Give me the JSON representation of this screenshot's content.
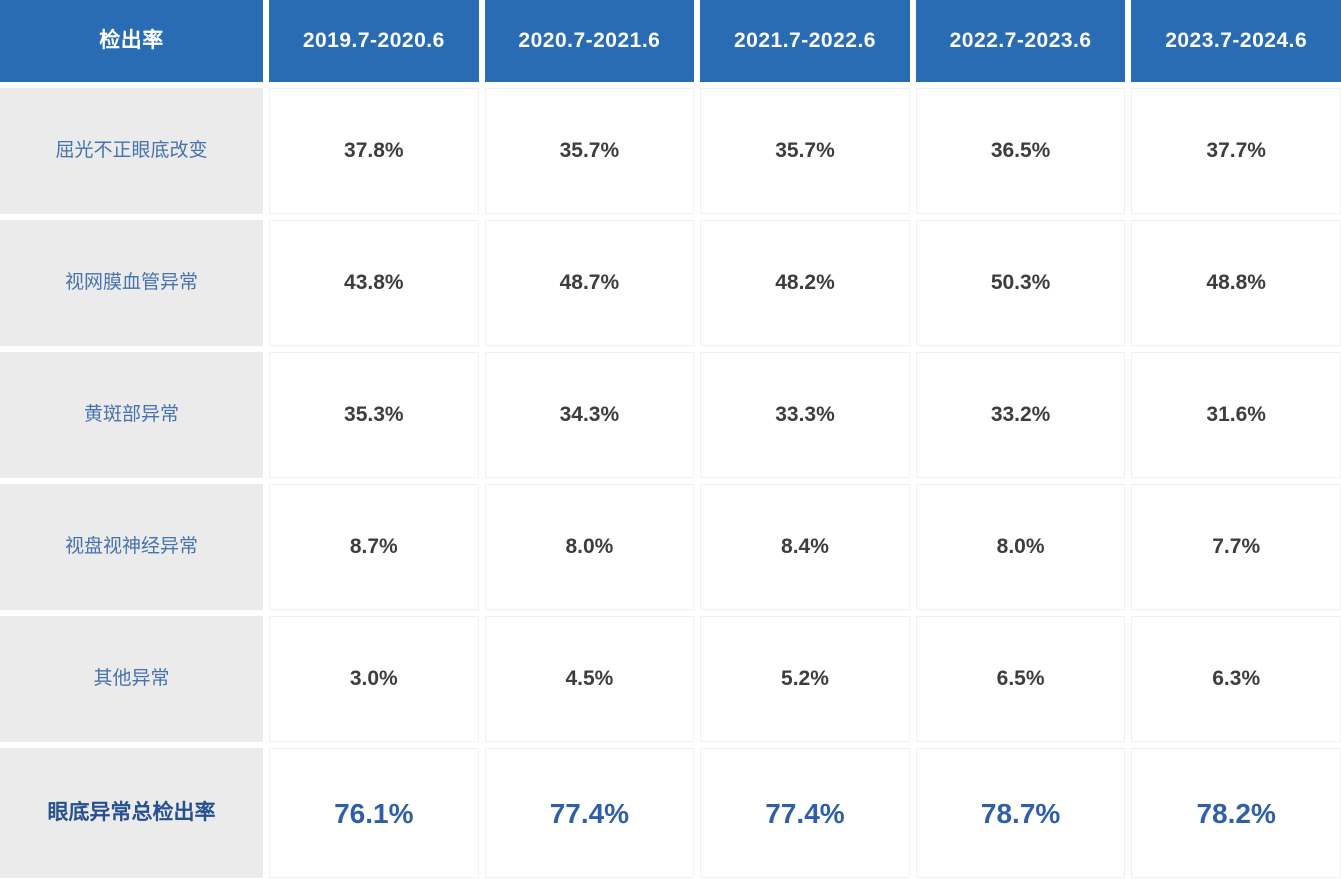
{
  "table": {
    "corner_label": "检出率",
    "columns": [
      "2019.7-2020.6",
      "2020.7-2021.6",
      "2021.7-2022.6",
      "2022.7-2023.6",
      "2023.7-2024.6"
    ],
    "rows": [
      {
        "label": "屈光不正眼底改变",
        "values": [
          "37.8%",
          "35.7%",
          "35.7%",
          "36.5%",
          "37.7%"
        ]
      },
      {
        "label": "视网膜血管异常",
        "values": [
          "43.8%",
          "48.7%",
          "48.2%",
          "50.3%",
          "48.8%"
        ]
      },
      {
        "label": "黄斑部异常",
        "values": [
          "35.3%",
          "34.3%",
          "33.3%",
          "33.2%",
          "31.6%"
        ]
      },
      {
        "label": "视盘视神经异常",
        "values": [
          "8.7%",
          "8.0%",
          "8.4%",
          "8.0%",
          "7.7%"
        ]
      },
      {
        "label": "其他异常",
        "values": [
          "3.0%",
          "4.5%",
          "5.2%",
          "6.5%",
          "6.3%"
        ]
      }
    ],
    "total": {
      "label": "眼底异常总检出率",
      "values": [
        "76.1%",
        "77.4%",
        "77.4%",
        "78.7%",
        "78.2%"
      ]
    }
  },
  "colors": {
    "header_bg": "#2a6cb3",
    "header_text": "#ffffff",
    "label_bg": "#ebebeb",
    "label_text": "#4673ae",
    "value_text": "#3d3d3d",
    "total_label_text": "#26508f",
    "total_value_text": "#2e5fa8"
  },
  "chart_data": {
    "type": "table",
    "title": "检出率",
    "columns": [
      "2019.7-2020.6",
      "2020.7-2021.6",
      "2021.7-2022.6",
      "2022.7-2023.6",
      "2023.7-2024.6"
    ],
    "rows": [
      {
        "label": "屈光不正眼底改变",
        "values_percent": [
          37.8,
          35.7,
          35.7,
          36.5,
          37.7
        ]
      },
      {
        "label": "视网膜血管异常",
        "values_percent": [
          43.8,
          48.7,
          48.2,
          50.3,
          48.8
        ]
      },
      {
        "label": "黄斑部异常",
        "values_percent": [
          35.3,
          34.3,
          33.3,
          33.2,
          31.6
        ]
      },
      {
        "label": "视盘视神经异常",
        "values_percent": [
          8.7,
          8.0,
          8.4,
          8.0,
          7.7
        ]
      },
      {
        "label": "其他异常",
        "values_percent": [
          3.0,
          4.5,
          5.2,
          6.5,
          6.3
        ]
      },
      {
        "label": "眼底异常总检出率",
        "values_percent": [
          76.1,
          77.4,
          77.4,
          78.7,
          78.2
        ]
      }
    ]
  }
}
